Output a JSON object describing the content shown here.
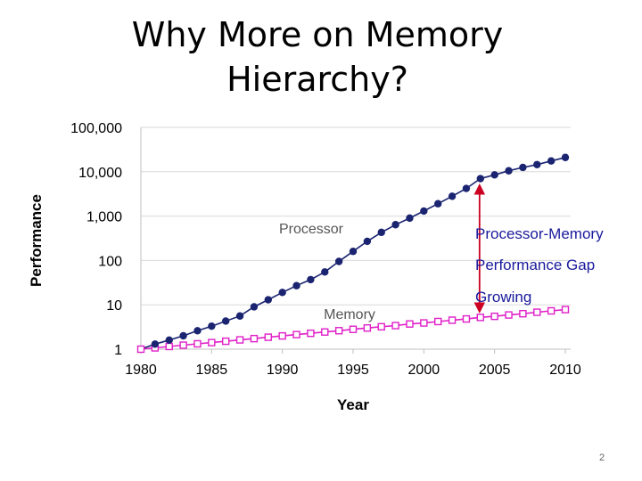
{
  "slide": {
    "title_line1": "Why More on Memory",
    "title_line2": "Hierarchy?",
    "page_number": "2"
  },
  "colors": {
    "processor": "#1a2470",
    "memory": "#e020c8",
    "gap_arrow": "#cc0022",
    "gap_text": "#1a1a9c",
    "gridline": "#d9d9d9"
  },
  "annotation": {
    "line1": "Processor-Memory",
    "line2": "Performance Gap",
    "line3": "Growing",
    "year": 2004
  },
  "chart_data": {
    "type": "line",
    "title": "",
    "xlabel": "Year",
    "ylabel": "Performance",
    "yscale": "log",
    "xlim": [
      1980,
      2010
    ],
    "ylim": [
      1,
      100000
    ],
    "xticks": [
      "1980",
      "1985",
      "1990",
      "1995",
      "2000",
      "2005",
      "2010"
    ],
    "yticks": [
      "1",
      "10",
      "100",
      "1,000",
      "10,000",
      "100,000"
    ],
    "grid": "horizontal",
    "series": [
      {
        "name": "Processor",
        "marker": "filled-circle",
        "x": [
          1980,
          1981,
          1982,
          1983,
          1984,
          1985,
          1986,
          1987,
          1988,
          1989,
          1990,
          1991,
          1992,
          1993,
          1994,
          1995,
          1996,
          1997,
          1998,
          1999,
          2000,
          2001,
          2002,
          2003,
          2004,
          2005,
          2006,
          2007,
          2008,
          2009,
          2010
        ],
        "values": [
          1,
          1.3,
          1.6,
          2,
          2.6,
          3.3,
          4.3,
          5.6,
          9,
          13,
          19,
          27,
          37,
          55,
          95,
          160,
          270,
          430,
          640,
          900,
          1300,
          1900,
          2800,
          4200,
          7000,
          8500,
          10500,
          12500,
          14500,
          17500,
          21000
        ]
      },
      {
        "name": "Memory",
        "marker": "open-square",
        "x": [
          1980,
          1981,
          1982,
          1983,
          1984,
          1985,
          1986,
          1987,
          1988,
          1989,
          1990,
          1991,
          1992,
          1993,
          1994,
          1995,
          1996,
          1997,
          1998,
          1999,
          2000,
          2001,
          2002,
          2003,
          2004,
          2005,
          2006,
          2007,
          2008,
          2009,
          2010
        ],
        "values": [
          1,
          1.07,
          1.15,
          1.23,
          1.32,
          1.41,
          1.51,
          1.62,
          1.73,
          1.86,
          1.99,
          2.13,
          2.28,
          2.44,
          2.61,
          2.8,
          3,
          3.2,
          3.4,
          3.7,
          3.9,
          4.2,
          4.5,
          4.8,
          5.2,
          5.5,
          5.9,
          6.3,
          6.8,
          7.3,
          7.8
        ]
      }
    ]
  }
}
